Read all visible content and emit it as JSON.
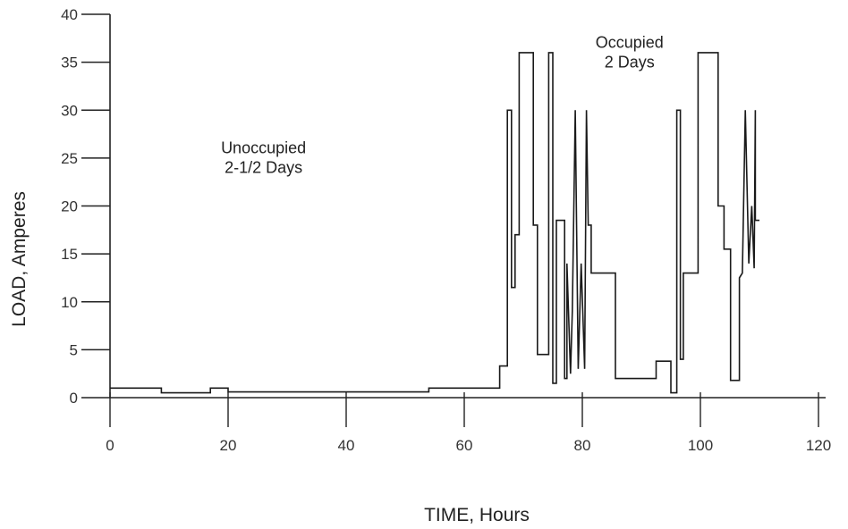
{
  "chart_data": {
    "type": "line",
    "title": "",
    "xlabel": "TIME, Hours",
    "ylabel": "LOAD, Amperes",
    "xlim": [
      0,
      120
    ],
    "ylim": [
      0,
      40
    ],
    "x_ticks": [
      0,
      20,
      40,
      60,
      80,
      100,
      120
    ],
    "y_ticks": [
      0,
      5,
      10,
      15,
      20,
      25,
      30,
      35,
      40
    ],
    "grid": false,
    "annotations": [
      {
        "text_lines": [
          "Unoccupied",
          "2-1/2 Days"
        ],
        "x": 26,
        "y": 25.5
      },
      {
        "text_lines": [
          "Occupied",
          "2 Days"
        ],
        "x": 88,
        "y": 36.5
      }
    ],
    "series": [
      {
        "x": [
          0,
          8.7,
          8.7,
          17,
          17,
          20,
          20,
          54,
          54,
          66,
          66,
          67.3,
          67.3,
          68,
          68,
          68.6,
          68.6,
          69.3,
          69.3,
          71.7,
          71.7,
          72.4,
          72.4,
          74.3,
          74.3,
          75,
          75,
          75.6,
          75.6,
          77,
          77,
          77.4,
          77.4,
          78,
          78.3,
          78.8,
          79.3,
          79.8,
          80.4,
          80.7,
          81,
          81.5,
          81.5,
          85.6,
          85.6,
          92.5,
          92.5,
          95,
          95,
          96,
          96,
          96.6,
          96.6,
          97.1,
          97.1,
          99.6,
          99.6,
          103,
          103,
          104,
          104,
          105.1,
          105.1,
          106.6,
          106.6,
          107.1,
          107.6,
          108.2,
          108.7,
          109.1,
          109.3,
          109.3,
          110
        ],
        "y": [
          1,
          1,
          0.5,
          0.5,
          1,
          1,
          0.6,
          0.6,
          1,
          1,
          3.3,
          3.3,
          30,
          30,
          11.5,
          11.5,
          17,
          17,
          36,
          36,
          18,
          18,
          4.5,
          4.5,
          36,
          36,
          1.5,
          1.5,
          18.5,
          18.5,
          2,
          2,
          14,
          2.5,
          9,
          30,
          3,
          14,
          3,
          30,
          18,
          18,
          13,
          13,
          2,
          2,
          3.8,
          3.8,
          0.5,
          0.5,
          30,
          30,
          4,
          4,
          13,
          13,
          36,
          36,
          20,
          20,
          15.5,
          15.5,
          1.8,
          1.8,
          12.5,
          13,
          30,
          14,
          20,
          13.5,
          30,
          18.5,
          18.5
        ]
      }
    ]
  }
}
